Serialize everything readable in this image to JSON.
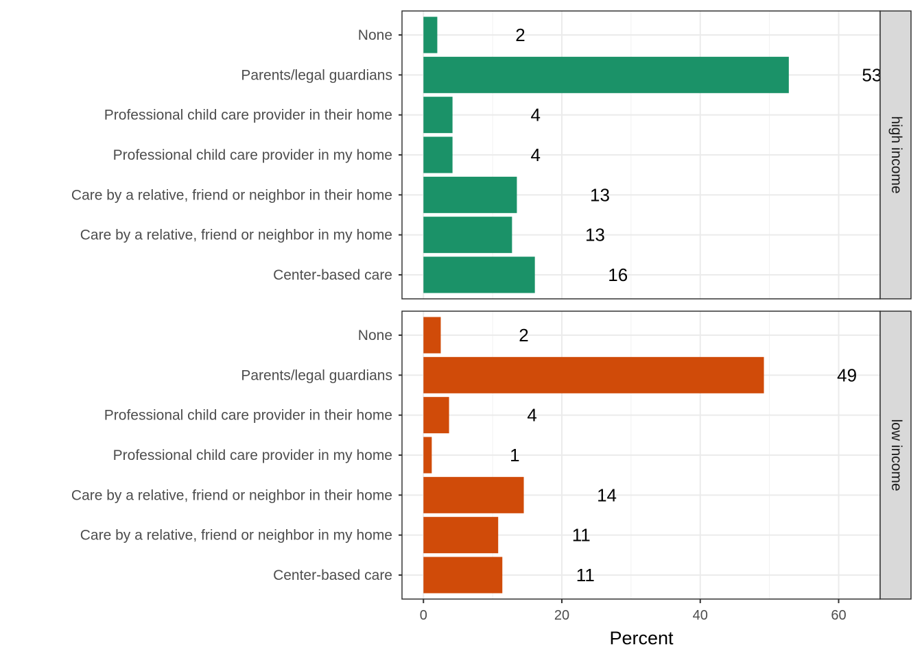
{
  "chart_data": {
    "type": "bar",
    "orientation": "horizontal",
    "categories": [
      "None",
      "Parents/legal guardians",
      "Professional child care provider in their home",
      "Professional child care provider in my home",
      "Care by a relative, friend or neighbor in their home",
      "Care by a relative, friend or neighbor in my home",
      "Center-based care"
    ],
    "facets": [
      {
        "name": "high income",
        "color": "#1b9268",
        "values": [
          2,
          52.8,
          4.2,
          4.2,
          13.5,
          12.8,
          16.1
        ],
        "labels": [
          "2",
          "53",
          "4",
          "4",
          "13",
          "13",
          "16"
        ]
      },
      {
        "name": "low income",
        "color": "#d04b09",
        "values": [
          2.5,
          49.2,
          3.7,
          1.2,
          14.5,
          10.8,
          11.4
        ],
        "labels": [
          "2",
          "49",
          "4",
          "1",
          "14",
          "11",
          "11"
        ]
      }
    ],
    "xlabel": "Percent",
    "ylabel": "",
    "xticks": [
      0,
      20,
      40,
      60
    ],
    "xlim": [
      -3.1,
      66
    ],
    "grid": true,
    "legend": "none"
  }
}
